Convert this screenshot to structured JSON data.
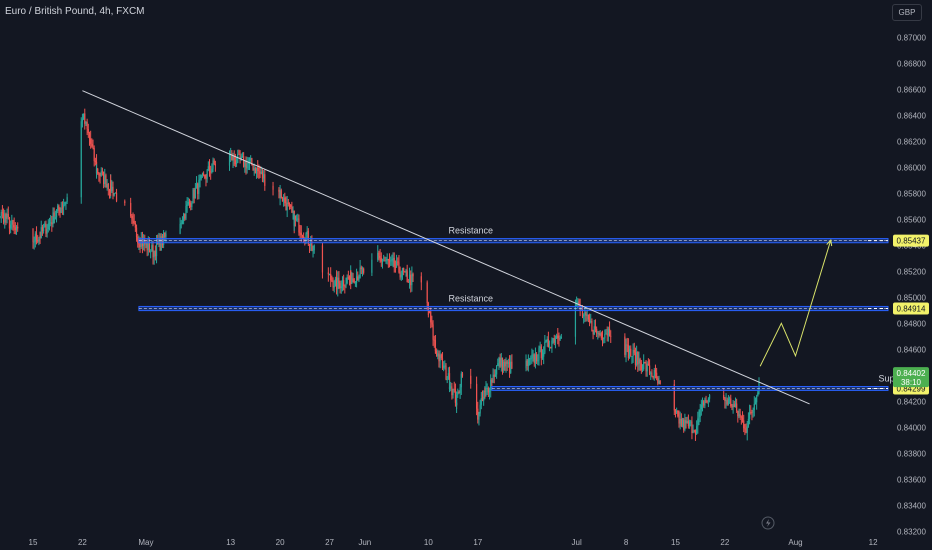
{
  "header": {
    "title": "Euro / British Pound, 4h, FXCM",
    "currency": "GBP"
  },
  "colors": {
    "background": "#131722",
    "up": "#26a69a",
    "down": "#ef5350",
    "zone": "#2962ff",
    "trendline": "#d1d4dc",
    "projection": "#d9e36a",
    "tag_yellow": "#f2f26a",
    "tag_green": "#4caf50",
    "axis_text": "#b2b5be"
  },
  "chart_data": {
    "type": "candlestick",
    "title": "Euro / British Pound, 4h, FXCM",
    "ylim": [
      0.8321,
      0.8718
    ],
    "y_ticks": [
      "0.87000",
      "0.86800",
      "0.86600",
      "0.86400",
      "0.86200",
      "0.86000",
      "0.85800",
      "0.85600",
      "0.85400",
      "0.85200",
      "0.85000",
      "0.84800",
      "0.84600",
      "0.84400",
      "0.84200",
      "0.84000",
      "0.83800",
      "0.83600",
      "0.83400",
      "0.83200"
    ],
    "x_ticks": [
      "15",
      "22",
      "May",
      "13",
      "20",
      "27",
      "Jun",
      "10",
      "17",
      "Jul",
      "8",
      "15",
      "22",
      "Aug",
      "12"
    ],
    "x_tick_dates": [
      "2024-04-15",
      "2024-04-22",
      "2024-05-01",
      "2024-05-13",
      "2024-05-20",
      "2024-05-27",
      "2024-06-01",
      "2024-06-10",
      "2024-06-17",
      "2024-07-01",
      "2024-07-08",
      "2024-07-15",
      "2024-07-22",
      "2024-08-01",
      "2024-08-12"
    ],
    "price_path": [
      [
        "2024-04-08",
        0.857
      ],
      [
        "2024-04-11",
        0.8562
      ],
      [
        "2024-04-14",
        0.854
      ],
      [
        "2024-04-16",
        0.8548
      ],
      [
        "2024-04-18",
        0.8562
      ],
      [
        "2024-04-20",
        0.8578
      ],
      [
        "2024-04-21",
        0.8605
      ],
      [
        "2024-04-22",
        0.864
      ],
      [
        "2024-04-23",
        0.8622
      ],
      [
        "2024-04-24",
        0.8598
      ],
      [
        "2024-04-26",
        0.8585
      ],
      [
        "2024-04-28",
        0.8568
      ],
      [
        "2024-04-30",
        0.8545
      ],
      [
        "2024-05-02",
        0.8535
      ],
      [
        "2024-05-04",
        0.8548
      ],
      [
        "2024-05-06",
        0.856
      ],
      [
        "2024-05-08",
        0.8582
      ],
      [
        "2024-05-10",
        0.8598
      ],
      [
        "2024-05-12",
        0.861
      ],
      [
        "2024-05-14",
        0.8605
      ],
      [
        "2024-05-16",
        0.8602
      ],
      [
        "2024-05-18",
        0.859
      ],
      [
        "2024-05-20",
        0.858
      ],
      [
        "2024-05-22",
        0.856
      ],
      [
        "2024-05-24",
        0.8545
      ],
      [
        "2024-05-26",
        0.852
      ],
      [
        "2024-05-28",
        0.851
      ],
      [
        "2024-05-30",
        0.8515
      ],
      [
        "2024-06-01",
        0.852
      ],
      [
        "2024-06-03",
        0.853
      ],
      [
        "2024-06-05",
        0.8525
      ],
      [
        "2024-06-07",
        0.8515
      ],
      [
        "2024-06-09",
        0.851
      ],
      [
        "2024-06-10",
        0.849
      ],
      [
        "2024-06-11",
        0.846
      ],
      [
        "2024-06-13",
        0.8435
      ],
      [
        "2024-06-14",
        0.842
      ],
      [
        "2024-06-15",
        0.845
      ],
      [
        "2024-06-16",
        0.843
      ],
      [
        "2024-06-17",
        0.841
      ],
      [
        "2024-06-18",
        0.8425
      ],
      [
        "2024-06-20",
        0.845
      ],
      [
        "2024-06-22",
        0.8445
      ],
      [
        "2024-06-24",
        0.8448
      ],
      [
        "2024-06-26",
        0.8458
      ],
      [
        "2024-06-28",
        0.847
      ],
      [
        "2024-06-30",
        0.848
      ],
      [
        "2024-07-01",
        0.8495
      ],
      [
        "2024-07-02",
        0.8485
      ],
      [
        "2024-07-04",
        0.8472
      ],
      [
        "2024-07-06",
        0.8475
      ],
      [
        "2024-07-08",
        0.846
      ],
      [
        "2024-07-10",
        0.845
      ],
      [
        "2024-07-12",
        0.844
      ],
      [
        "2024-07-14",
        0.8415
      ],
      [
        "2024-07-16",
        0.8402
      ],
      [
        "2024-07-18",
        0.84
      ],
      [
        "2024-07-19",
        0.842
      ],
      [
        "2024-07-21",
        0.8425
      ],
      [
        "2024-07-23",
        0.8418
      ],
      [
        "2024-07-25",
        0.84
      ],
      [
        "2024-07-26",
        0.8415
      ],
      [
        "2024-07-27",
        0.844
      ]
    ],
    "zones": [
      {
        "label": "Resistance",
        "from": 0.8542,
        "to": 0.85452,
        "price_tag": "0.85437",
        "start": "2024-04-30",
        "label_x": "2024-06-16"
      },
      {
        "label": "Resistance",
        "from": 0.84898,
        "to": 0.8493,
        "price_tag": "0.84914",
        "start": "2024-04-30",
        "label_x": "2024-06-16"
      },
      {
        "label": "Support",
        "from": 0.84284,
        "to": 0.84314,
        "price_tag": "0.84299",
        "start": "2024-06-19",
        "label_x": "2024-08-15"
      }
    ],
    "trendline": {
      "start": [
        "2024-04-22",
        0.8659
      ],
      "end": [
        "2024-08-03",
        0.8418
      ]
    },
    "projection": [
      [
        "2024-07-27",
        0.8447
      ],
      [
        "2024-07-30",
        0.848
      ],
      [
        "2024-08-01",
        0.8455
      ],
      [
        "2024-08-06",
        0.8544
      ]
    ],
    "current_price": {
      "value": "0.84402",
      "countdown": "38:10"
    },
    "grid": false
  }
}
